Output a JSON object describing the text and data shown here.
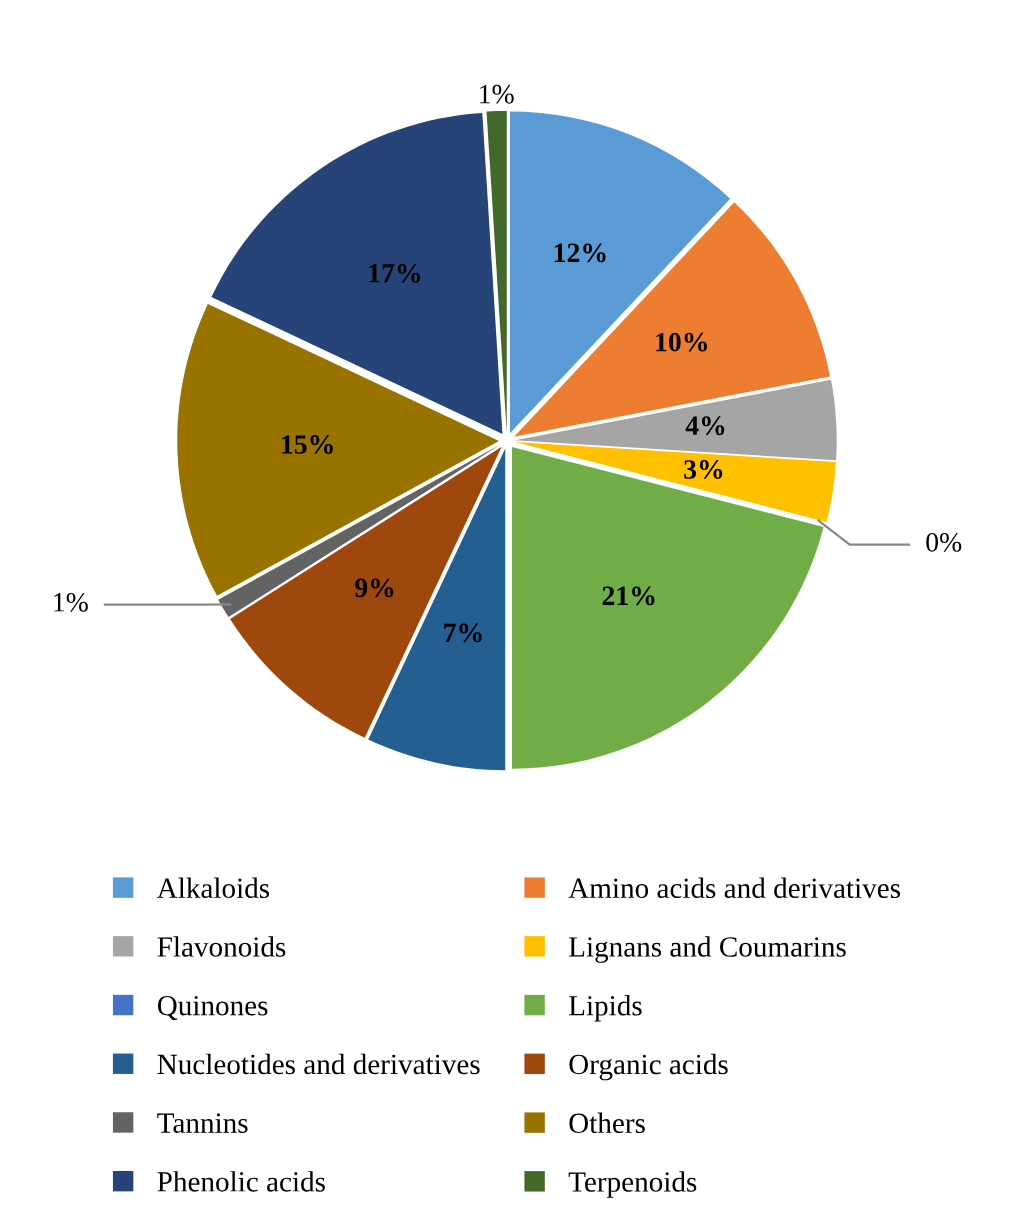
{
  "chart_data": {
    "type": "pie",
    "categories": [
      "Alkaloids",
      "Amino acids and derivatives",
      "Flavonoids",
      "Lignans and Coumarins",
      "Quinones",
      "Lipids",
      "Nucleotides and derivatives",
      "Organic acids",
      "Tannins",
      "Others",
      "Phenolic acids",
      "Terpenoids"
    ],
    "values": [
      12,
      10,
      4,
      3,
      0,
      21,
      7,
      9,
      1,
      15,
      17,
      1
    ],
    "value_labels": [
      "12%",
      "10%",
      "4%",
      "3%",
      "0%",
      "21%",
      "7%",
      "9%",
      "1%",
      "15%",
      "17%",
      "1%"
    ],
    "colors": [
      "#5b9bd5",
      "#ed7d31",
      "#a5a5a5",
      "#ffc000",
      "#4472c4",
      "#70ad47",
      "#255e91",
      "#9e480e",
      "#636363",
      "#997300",
      "#264478",
      "#43682b"
    ],
    "legend": "bottom"
  }
}
